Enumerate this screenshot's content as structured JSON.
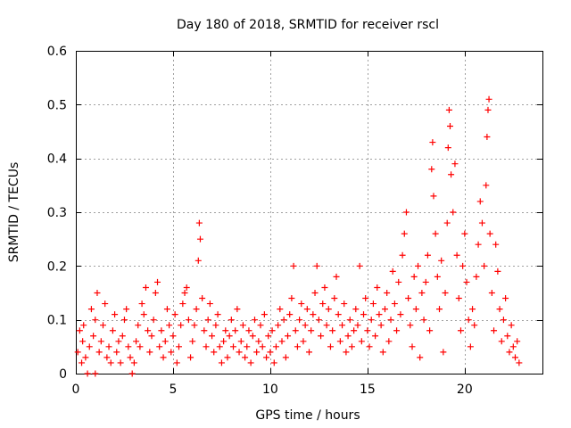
{
  "chart_data": {
    "type": "scatter",
    "title": "Day 180 of 2018, SRMTID for receiver rscl",
    "xlabel": "GPS time / hours",
    "ylabel": "SRMTID / TECUs",
    "xlim": [
      0,
      24
    ],
    "ylim": [
      0,
      0.6
    ],
    "xticks": [
      0,
      5,
      10,
      15,
      20
    ],
    "yticks": [
      0,
      0.1,
      0.2,
      0.3,
      0.4,
      0.5,
      0.6
    ],
    "xtick_labels": [
      "0",
      "5",
      "10",
      "15",
      "20"
    ],
    "ytick_labels": [
      "0",
      "0.1",
      "0.2",
      "0.3",
      "0.4",
      "0.5",
      "0.6"
    ],
    "grid": true,
    "marker": "+",
    "color": "#ff0000",
    "series": [
      {
        "name": "SRMTID",
        "points": [
          [
            0.1,
            0.04
          ],
          [
            0.2,
            0.08
          ],
          [
            0.3,
            0.02
          ],
          [
            0.35,
            0.06
          ],
          [
            0.4,
            0.09
          ],
          [
            0.5,
            0.03
          ],
          [
            0.6,
            0.0
          ],
          [
            0.7,
            0.05
          ],
          [
            0.8,
            0.12
          ],
          [
            0.9,
            0.07
          ],
          [
            1.0,
            0.0
          ],
          [
            1.0,
            0.1
          ],
          [
            1.1,
            0.15
          ],
          [
            1.2,
            0.04
          ],
          [
            1.3,
            0.06
          ],
          [
            1.4,
            0.09
          ],
          [
            1.5,
            0.13
          ],
          [
            1.6,
            0.03
          ],
          [
            1.7,
            0.05
          ],
          [
            1.8,
            0.02
          ],
          [
            1.9,
            0.08
          ],
          [
            2.0,
            0.11
          ],
          [
            2.1,
            0.04
          ],
          [
            2.2,
            0.06
          ],
          [
            2.3,
            0.02
          ],
          [
            2.4,
            0.07
          ],
          [
            2.5,
            0.1
          ],
          [
            2.6,
            0.12
          ],
          [
            2.7,
            0.05
          ],
          [
            2.8,
            0.03
          ],
          [
            2.9,
            0.0
          ],
          [
            3.0,
            0.02
          ],
          [
            3.1,
            0.06
          ],
          [
            3.2,
            0.09
          ],
          [
            3.3,
            0.05
          ],
          [
            3.4,
            0.13
          ],
          [
            3.5,
            0.11
          ],
          [
            3.6,
            0.16
          ],
          [
            3.7,
            0.08
          ],
          [
            3.8,
            0.04
          ],
          [
            3.9,
            0.07
          ],
          [
            4.0,
            0.1
          ],
          [
            4.1,
            0.15
          ],
          [
            4.2,
            0.17
          ],
          [
            4.3,
            0.05
          ],
          [
            4.4,
            0.08
          ],
          [
            4.5,
            0.03
          ],
          [
            4.6,
            0.06
          ],
          [
            4.7,
            0.12
          ],
          [
            4.8,
            0.09
          ],
          [
            4.9,
            0.04
          ],
          [
            5.0,
            0.07
          ],
          [
            5.1,
            0.11
          ],
          [
            5.2,
            0.02
          ],
          [
            5.3,
            0.05
          ],
          [
            5.4,
            0.09
          ],
          [
            5.5,
            0.13
          ],
          [
            5.6,
            0.15
          ],
          [
            5.7,
            0.16
          ],
          [
            5.8,
            0.1
          ],
          [
            5.9,
            0.03
          ],
          [
            6.0,
            0.06
          ],
          [
            6.1,
            0.09
          ],
          [
            6.2,
            0.12
          ],
          [
            6.3,
            0.21
          ],
          [
            6.35,
            0.28
          ],
          [
            6.4,
            0.25
          ],
          [
            6.5,
            0.14
          ],
          [
            6.6,
            0.08
          ],
          [
            6.7,
            0.05
          ],
          [
            6.8,
            0.1
          ],
          [
            6.9,
            0.13
          ],
          [
            7.0,
            0.07
          ],
          [
            7.1,
            0.04
          ],
          [
            7.2,
            0.09
          ],
          [
            7.3,
            0.11
          ],
          [
            7.4,
            0.05
          ],
          [
            7.5,
            0.02
          ],
          [
            7.6,
            0.06
          ],
          [
            7.7,
            0.08
          ],
          [
            7.8,
            0.03
          ],
          [
            7.9,
            0.07
          ],
          [
            8.0,
            0.1
          ],
          [
            8.1,
            0.05
          ],
          [
            8.2,
            0.08
          ],
          [
            8.3,
            0.12
          ],
          [
            8.4,
            0.04
          ],
          [
            8.5,
            0.06
          ],
          [
            8.6,
            0.09
          ],
          [
            8.7,
            0.03
          ],
          [
            8.8,
            0.05
          ],
          [
            8.9,
            0.08
          ],
          [
            9.0,
            0.02
          ],
          [
            9.1,
            0.07
          ],
          [
            9.2,
            0.1
          ],
          [
            9.3,
            0.04
          ],
          [
            9.4,
            0.06
          ],
          [
            9.5,
            0.09
          ],
          [
            9.6,
            0.05
          ],
          [
            9.7,
            0.11
          ],
          [
            9.8,
            0.03
          ],
          [
            9.9,
            0.07
          ],
          [
            10.0,
            0.04
          ],
          [
            10.1,
            0.08
          ],
          [
            10.2,
            0.02
          ],
          [
            10.3,
            0.05
          ],
          [
            10.4,
            0.09
          ],
          [
            10.5,
            0.12
          ],
          [
            10.6,
            0.06
          ],
          [
            10.7,
            0.1
          ],
          [
            10.8,
            0.03
          ],
          [
            10.9,
            0.07
          ],
          [
            11.0,
            0.11
          ],
          [
            11.1,
            0.14
          ],
          [
            11.2,
            0.2
          ],
          [
            11.3,
            0.08
          ],
          [
            11.4,
            0.05
          ],
          [
            11.5,
            0.1
          ],
          [
            11.6,
            0.13
          ],
          [
            11.7,
            0.06
          ],
          [
            11.8,
            0.09
          ],
          [
            11.9,
            0.12
          ],
          [
            12.0,
            0.04
          ],
          [
            12.1,
            0.08
          ],
          [
            12.2,
            0.11
          ],
          [
            12.3,
            0.15
          ],
          [
            12.4,
            0.2
          ],
          [
            12.5,
            0.1
          ],
          [
            12.6,
            0.07
          ],
          [
            12.7,
            0.13
          ],
          [
            12.8,
            0.16
          ],
          [
            12.9,
            0.09
          ],
          [
            13.0,
            0.12
          ],
          [
            13.1,
            0.05
          ],
          [
            13.2,
            0.08
          ],
          [
            13.3,
            0.14
          ],
          [
            13.4,
            0.18
          ],
          [
            13.5,
            0.11
          ],
          [
            13.6,
            0.06
          ],
          [
            13.7,
            0.09
          ],
          [
            13.8,
            0.13
          ],
          [
            13.9,
            0.04
          ],
          [
            14.0,
            0.07
          ],
          [
            14.1,
            0.1
          ],
          [
            14.2,
            0.05
          ],
          [
            14.3,
            0.08
          ],
          [
            14.4,
            0.12
          ],
          [
            14.5,
            0.09
          ],
          [
            14.6,
            0.2
          ],
          [
            14.7,
            0.06
          ],
          [
            14.8,
            0.11
          ],
          [
            14.9,
            0.14
          ],
          [
            15.0,
            0.08
          ],
          [
            15.1,
            0.05
          ],
          [
            15.2,
            0.1
          ],
          [
            15.3,
            0.13
          ],
          [
            15.4,
            0.07
          ],
          [
            15.5,
            0.16
          ],
          [
            15.6,
            0.11
          ],
          [
            15.7,
            0.09
          ],
          [
            15.8,
            0.04
          ],
          [
            15.9,
            0.12
          ],
          [
            16.0,
            0.15
          ],
          [
            16.1,
            0.06
          ],
          [
            16.2,
            0.1
          ],
          [
            16.3,
            0.19
          ],
          [
            16.4,
            0.13
          ],
          [
            16.5,
            0.08
          ],
          [
            16.6,
            0.17
          ],
          [
            16.7,
            0.11
          ],
          [
            16.8,
            0.22
          ],
          [
            16.9,
            0.26
          ],
          [
            17.0,
            0.3
          ],
          [
            17.1,
            0.14
          ],
          [
            17.2,
            0.09
          ],
          [
            17.3,
            0.05
          ],
          [
            17.4,
            0.18
          ],
          [
            17.5,
            0.12
          ],
          [
            17.6,
            0.2
          ],
          [
            17.7,
            0.03
          ],
          [
            17.8,
            0.15
          ],
          [
            17.9,
            0.1
          ],
          [
            18.0,
            0.17
          ],
          [
            18.1,
            0.22
          ],
          [
            18.2,
            0.08
          ],
          [
            18.3,
            0.38
          ],
          [
            18.35,
            0.43
          ],
          [
            18.4,
            0.33
          ],
          [
            18.5,
            0.26
          ],
          [
            18.6,
            0.18
          ],
          [
            18.7,
            0.12
          ],
          [
            18.8,
            0.21
          ],
          [
            18.9,
            0.04
          ],
          [
            19.0,
            0.15
          ],
          [
            19.1,
            0.28
          ],
          [
            19.15,
            0.42
          ],
          [
            19.2,
            0.49
          ],
          [
            19.25,
            0.46
          ],
          [
            19.3,
            0.37
          ],
          [
            19.4,
            0.3
          ],
          [
            19.5,
            0.39
          ],
          [
            19.6,
            0.22
          ],
          [
            19.7,
            0.14
          ],
          [
            19.8,
            0.08
          ],
          [
            19.9,
            0.2
          ],
          [
            20.0,
            0.26
          ],
          [
            20.1,
            0.17
          ],
          [
            20.2,
            0.1
          ],
          [
            20.3,
            0.05
          ],
          [
            20.4,
            0.12
          ],
          [
            20.5,
            0.09
          ],
          [
            20.6,
            0.18
          ],
          [
            20.7,
            0.24
          ],
          [
            20.8,
            0.32
          ],
          [
            20.9,
            0.28
          ],
          [
            21.0,
            0.2
          ],
          [
            21.1,
            0.35
          ],
          [
            21.15,
            0.44
          ],
          [
            21.2,
            0.49
          ],
          [
            21.25,
            0.51
          ],
          [
            21.3,
            0.26
          ],
          [
            21.4,
            0.15
          ],
          [
            21.5,
            0.08
          ],
          [
            21.6,
            0.24
          ],
          [
            21.7,
            0.19
          ],
          [
            21.8,
            0.12
          ],
          [
            21.9,
            0.06
          ],
          [
            22.0,
            0.1
          ],
          [
            22.1,
            0.14
          ],
          [
            22.2,
            0.07
          ],
          [
            22.3,
            0.04
          ],
          [
            22.4,
            0.09
          ],
          [
            22.5,
            0.05
          ],
          [
            22.6,
            0.03
          ],
          [
            22.7,
            0.06
          ],
          [
            22.8,
            0.02
          ]
        ]
      }
    ]
  }
}
